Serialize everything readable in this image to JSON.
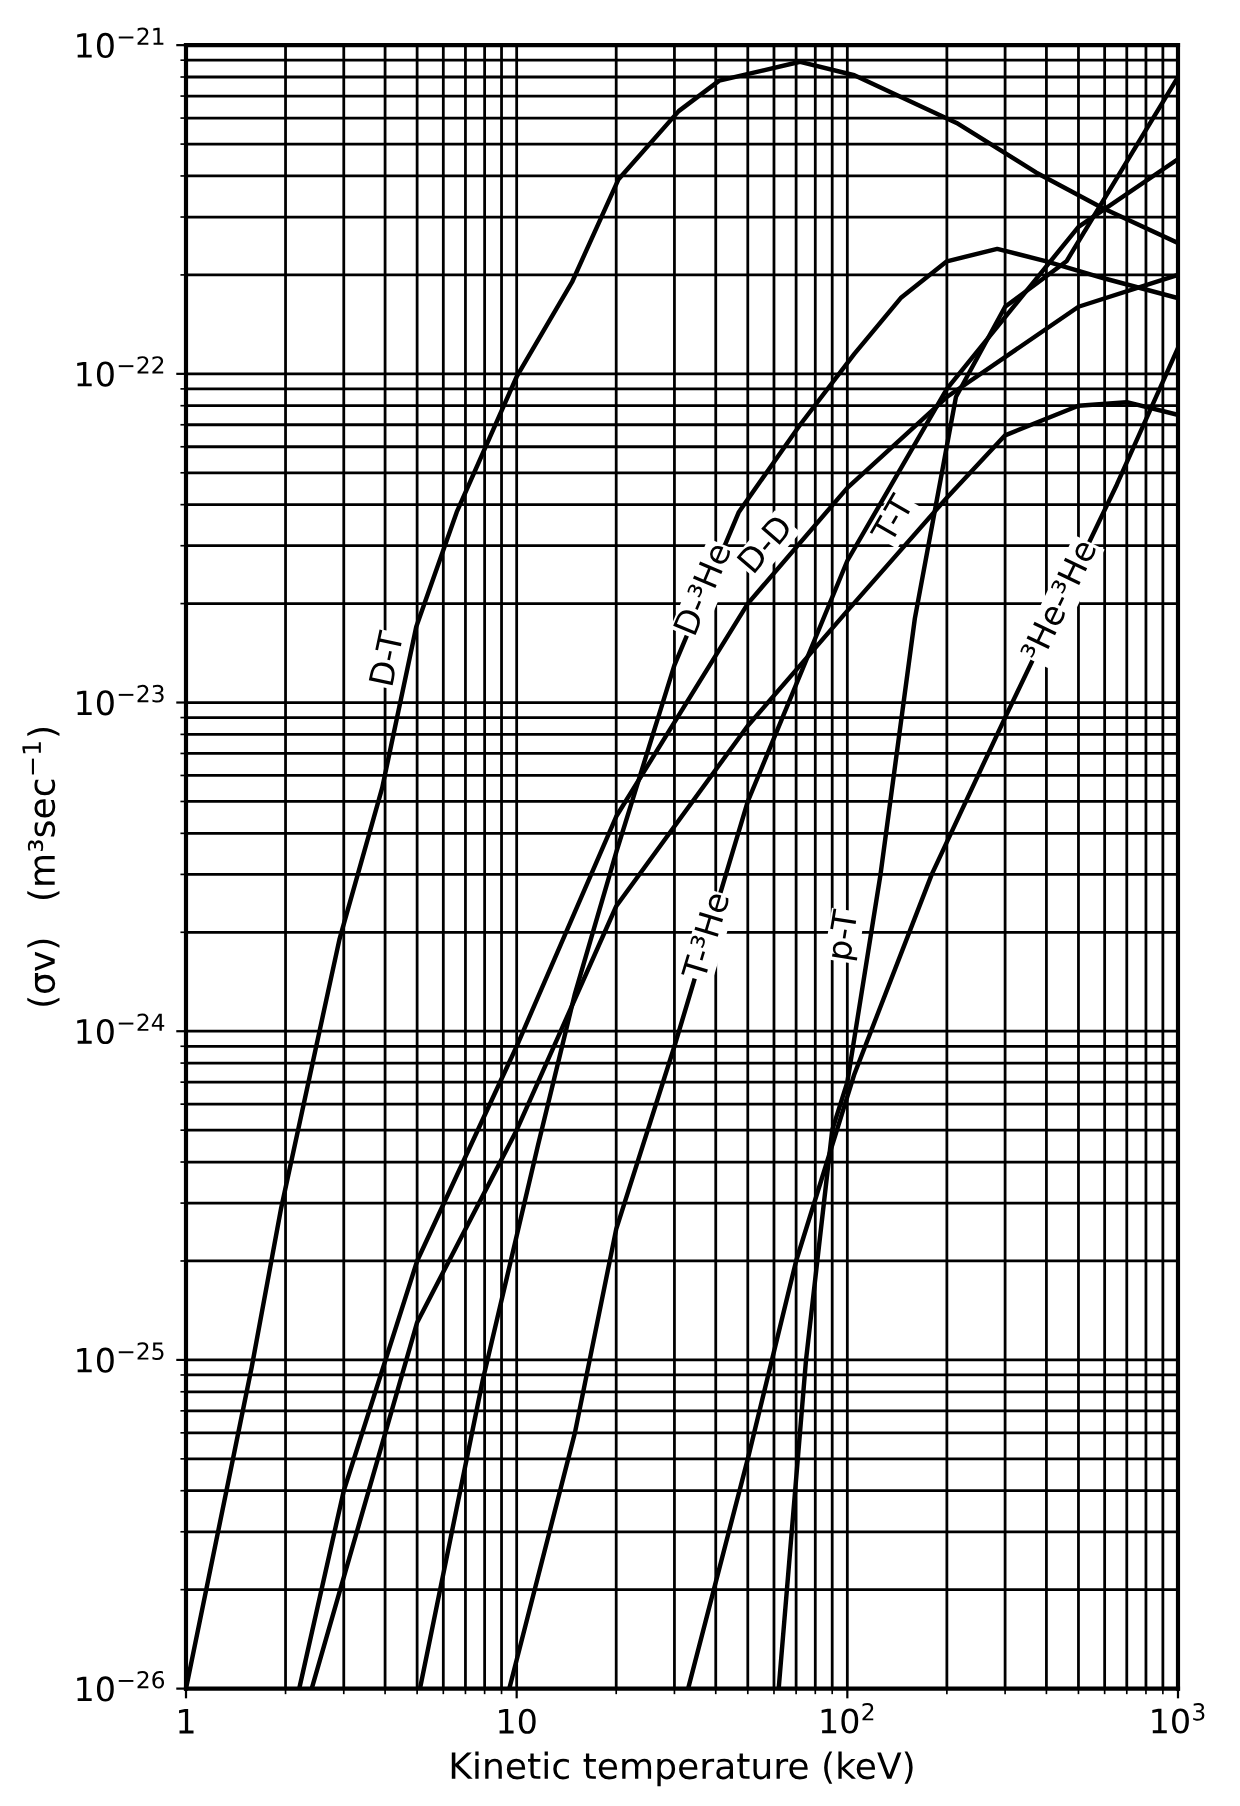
{
  "chart_data": {
    "type": "line",
    "xlabel": "Kinetic temperature (keV)",
    "ylabel": "(σv)   (m³sec$^{−1}$)",
    "log": "xy",
    "grid": true,
    "legend": false,
    "marker": "none",
    "line_style": "solid",
    "xlim": [
      1,
      1000
    ],
    "ylim": [
      1e-26,
      1e-21
    ],
    "xticks": [
      {
        "value": 1,
        "label": "1"
      },
      {
        "value": 10,
        "label": "10"
      },
      {
        "value": 100,
        "label": "10$^{2}$"
      },
      {
        "value": 1000,
        "label": "10$^{3}$"
      }
    ],
    "yticks": [
      {
        "value": 1e-26,
        "label": "10$^{−26}$"
      },
      {
        "value": 1e-25,
        "label": "10$^{−25}$"
      },
      {
        "value": 1e-24,
        "label": "10$^{−24}$"
      },
      {
        "value": 1e-23,
        "label": "10$^{−23}$"
      },
      {
        "value": 1e-22,
        "label": "10$^{−22}$"
      },
      {
        "value": 1e-21,
        "label": "10$^{−21}$"
      }
    ],
    "series": [
      {
        "color": "#000000",
        "x": [
          1,
          1.58,
          1.94,
          2.91,
          3.92,
          4.97,
          6.59,
          10,
          14.7,
          20.3,
          30.9,
          41,
          72,
          105,
          214,
          372,
          589,
          1000
        ],
        "values": [
          1e-26,
          9.5e-26,
          2.9e-25,
          1.9e-24,
          5.5e-24,
          1.7e-23,
          3.8e-23,
          9.8e-23,
          1.9e-22,
          3.9e-22,
          6.3e-22,
          7.8e-22,
          8.9e-22,
          8.1e-22,
          5.8e-22,
          4.1e-22,
          3.2e-22,
          2.5e-22
        ]
      },
      {
        "color": "#000000",
        "x": [
          5.1,
          7.9,
          11.6,
          15,
          20,
          30,
          47,
          72,
          105,
          145,
          200,
          284,
          400,
          600,
          1000
        ],
        "values": [
          1e-26,
          8.7e-26,
          4.5e-25,
          1.3e-24,
          3.5e-24,
          1.3e-23,
          3.8e-23,
          7e-23,
          1.15e-22,
          1.7e-22,
          2.2e-22,
          2.4e-22,
          2.2e-22,
          1.95e-22,
          1.7e-22
        ]
      },
      {
        "color": "#000000",
        "x": [
          2.2,
          3,
          5,
          10,
          20,
          50,
          100,
          200,
          500,
          1000
        ],
        "values": [
          1e-26,
          4e-26,
          2e-25,
          9e-25,
          4.5e-24,
          2e-23,
          4.5e-23,
          8.5e-23,
          1.6e-22,
          2e-22
        ]
      },
      {
        "color": "#000000",
        "x": [
          2.4,
          5,
          10,
          20,
          50,
          100,
          200,
          300,
          500,
          700,
          1000
        ],
        "values": [
          1e-26,
          1.3e-25,
          5e-25,
          2.4e-24,
          8.5e-24,
          1.9e-23,
          4.2e-23,
          6.5e-23,
          8e-23,
          8.2e-23,
          7.5e-23
        ]
      },
      {
        "color": "#000000",
        "x": [
          9.5,
          15,
          20,
          30,
          50,
          100,
          200,
          500,
          1000
        ],
        "values": [
          1e-26,
          6e-26,
          2.5e-25,
          9e-25,
          5e-24,
          2.7e-23,
          9e-23,
          2.8e-22,
          4.5e-22
        ]
      },
      {
        "color": "#000000",
        "x": [
          62,
          75,
          90,
          100,
          126,
          160,
          213,
          300,
          460,
          1000
        ],
        "values": [
          1e-26,
          1e-25,
          5e-25,
          7e-25,
          3e-24,
          1.8e-23,
          8.5e-23,
          1.6e-22,
          2.2e-22,
          8e-22
        ]
      },
      {
        "color": "#000000",
        "x": [
          33,
          50,
          70,
          105,
          180,
          300,
          653,
          1000
        ],
        "values": [
          1e-26,
          5e-26,
          2e-25,
          7.4e-25,
          3e-24,
          9e-24,
          4.6e-23,
          1.2e-22
        ]
      }
    ],
    "annotations": [
      {
        "text": "D-T",
        "x": 4.1,
        "y": 1.35e-23
      },
      {
        "text": "D-³He",
        "x": 37,
        "y": 2.2e-23
      },
      {
        "text": "D-D",
        "x": 57,
        "y": 3e-23
      },
      {
        "text": "T-T",
        "x": 139,
        "y": 3.6e-23
      },
      {
        "text": "³He-³He",
        "x": 443,
        "y": 2.03e-23
      },
      {
        "text": "T-³He",
        "x": 38,
        "y": 1.95e-24
      },
      {
        "text": "p-T",
        "x": 98,
        "y": 1.95e-24
      }
    ]
  }
}
